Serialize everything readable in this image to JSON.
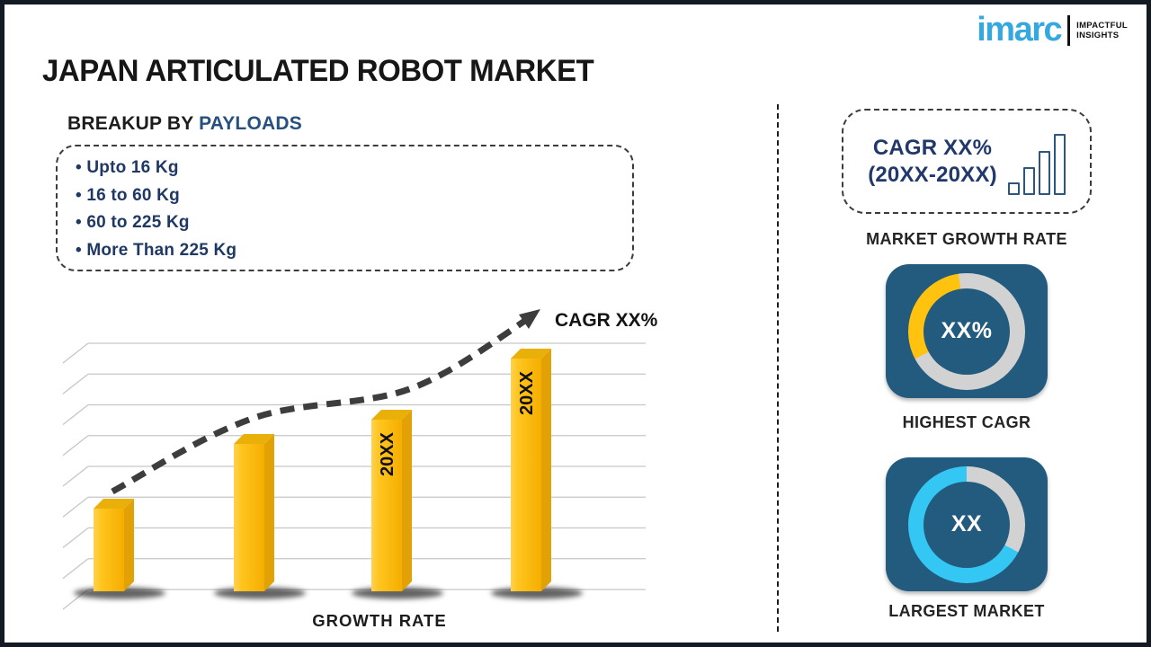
{
  "page": {
    "title": "JAPAN ARTICULATED ROBOT MARKET"
  },
  "logo": {
    "brand": "imarc",
    "tagline_line1": "IMPACTFUL",
    "tagline_line2": "INSIGHTS",
    "brand_color": "#35A8E0"
  },
  "breakup": {
    "prefix": "BREAKUP BY ",
    "highlight": "PAYLOADS",
    "items": [
      "Upto 16 Kg",
      "16 to 60 Kg",
      "60 to 225 Kg",
      "More Than 225 Kg"
    ]
  },
  "chart_data": {
    "type": "bar",
    "title": "",
    "xlabel": "GROWTH RATE",
    "ylabel": "",
    "categories": [
      "",
      "",
      "20XX",
      "20XX"
    ],
    "values": [
      92,
      164,
      191,
      259
    ],
    "value_note": "relative bar heights in px; no numeric axis shown",
    "gridline_count": 9,
    "trend_label": "CAGR XX%",
    "colors": {
      "front_light": "#FFD152",
      "front_dark": "#F5AE00",
      "top_face": "#E8B008",
      "side_face": "#E2A105",
      "trend": "#3d3d3d",
      "gridline": "#c6c6c6"
    }
  },
  "right_panel": {
    "growth_box": {
      "line1": "CAGR XX%",
      "line2": "(20XX-20XX)",
      "caption": "MARKET GROWTH RATE",
      "icon_bar_heights": [
        14,
        31,
        49,
        68
      ]
    },
    "highest_cagr": {
      "center_label": "XX%",
      "caption": "HIGHEST CAGR",
      "tile_color": "#235B7E",
      "segment_color": "#FFC20E",
      "ring_color": "#D2D2D2",
      "segment_start_deg": 242,
      "segment_end_deg": 352
    },
    "largest_market": {
      "center_label": "XX",
      "caption": "LARGEST MARKET",
      "tile_color": "#235B7E",
      "segment_color": "#D2D2D2",
      "ring_color": "#35C7F4",
      "segment_start_deg": 0,
      "segment_end_deg": 118
    }
  }
}
